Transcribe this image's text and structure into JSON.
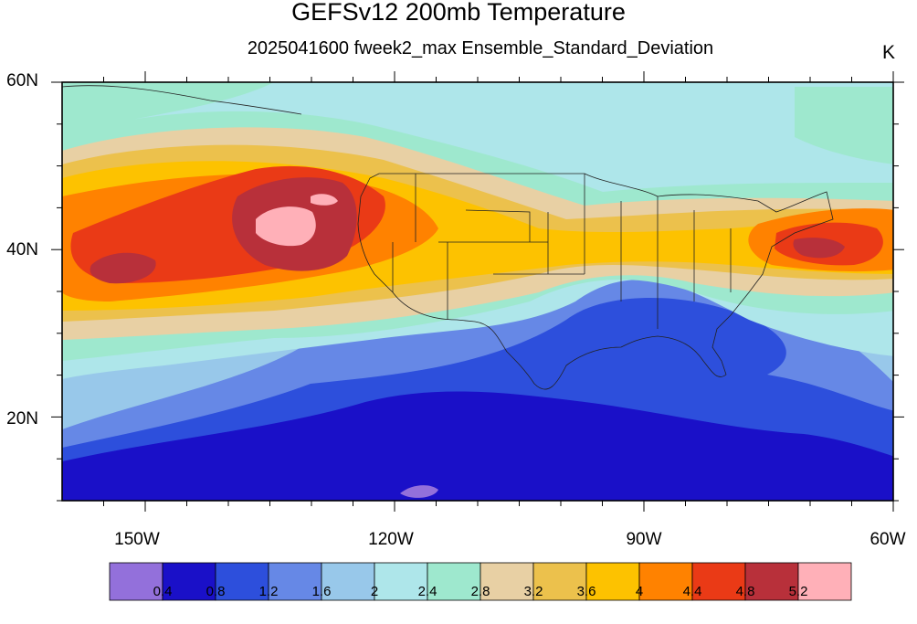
{
  "title": "GEFSv12 200mb Temperature",
  "subtitle": "2025041600 fweek2_max Ensemble_Standard_Deviation",
  "units": "K",
  "map": {
    "lon_range": [
      -160,
      -60
    ],
    "lat_range": [
      10,
      60
    ],
    "lat_ticks": [
      {
        "lat": 60,
        "label": "60N"
      },
      {
        "lat": 40,
        "label": "40N"
      },
      {
        "lat": 20,
        "label": "20N"
      }
    ],
    "lon_ticks": [
      {
        "lon": -150,
        "label": "150W"
      },
      {
        "lon": -120,
        "label": "120W"
      },
      {
        "lon": -90,
        "label": "90W"
      },
      {
        "lon": -60,
        "label": "60W"
      }
    ]
  },
  "colorbar": {
    "colors": [
      "#9370db",
      "#1a10c8",
      "#2d4fdc",
      "#6688e6",
      "#98c8ea",
      "#aee6ea",
      "#9ee8ce",
      "#e8d0a4",
      "#ecc14c",
      "#fdc200",
      "#ff8200",
      "#ea3a16",
      "#b8303a",
      "#ffb0b8"
    ],
    "labels": [
      "0.4",
      "0.8",
      "1.2",
      "1.6",
      "2",
      "2.4",
      "2.8",
      "3.2",
      "3.6",
      "4",
      "4.4",
      "4.8",
      "5.2"
    ]
  }
}
